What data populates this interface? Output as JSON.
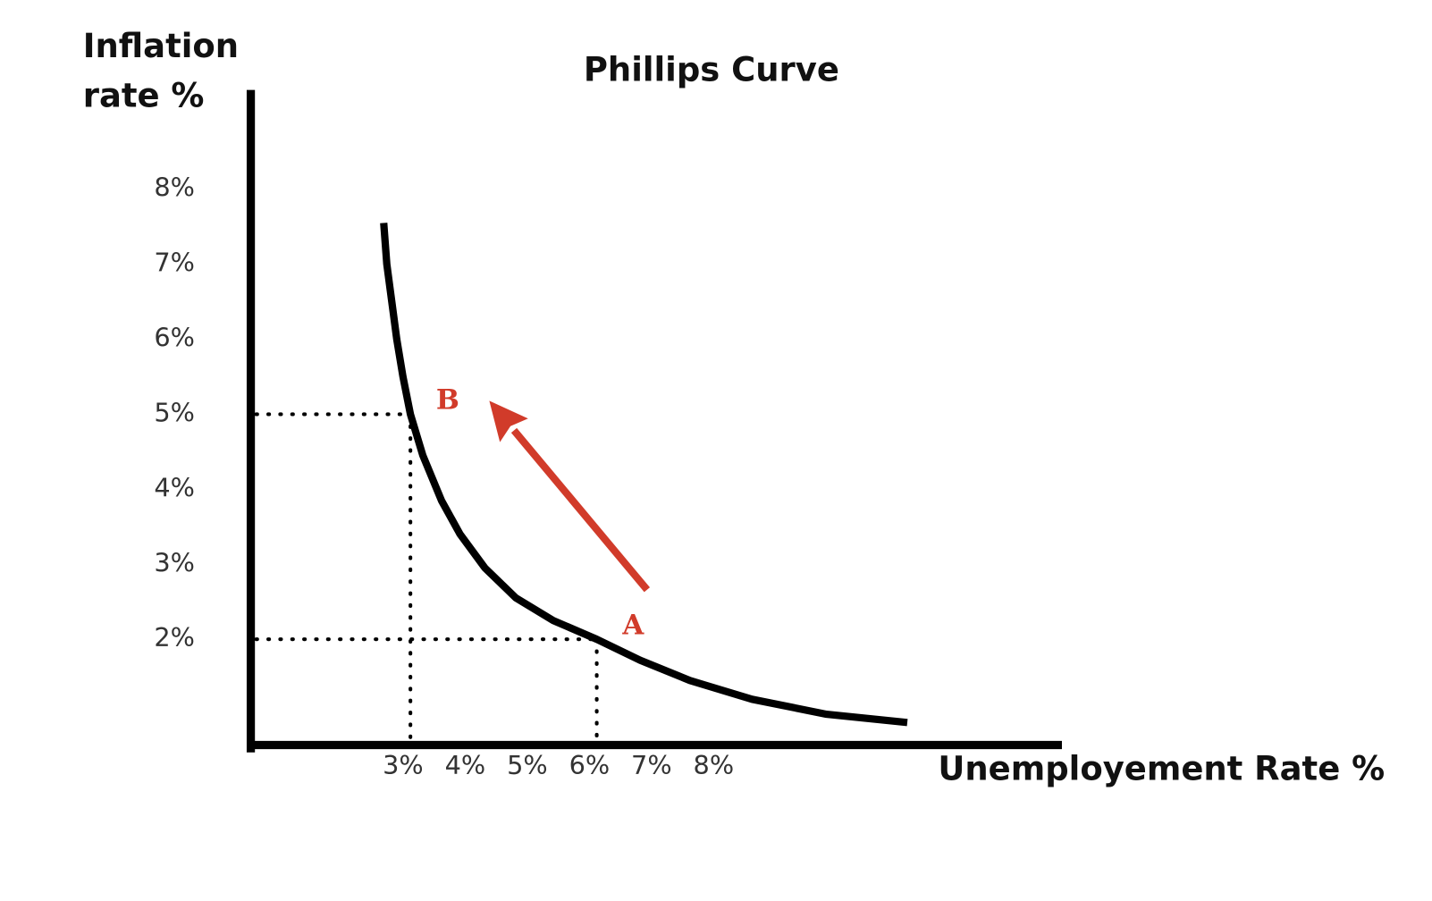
{
  "chart_data": {
    "type": "line",
    "title": "Phillips Curve",
    "y_label": [
      "Inflation",
      "rate %"
    ],
    "x_label": "Unemployement Rate %",
    "xlim": [
      0.43,
      13.46
    ],
    "ylim": [
      0.59,
      9.3
    ],
    "xticks": [
      {
        "value": 3,
        "label": "3%"
      },
      {
        "value": 4,
        "label": "4%"
      },
      {
        "value": 5,
        "label": "5%"
      },
      {
        "value": 6,
        "label": "6%"
      },
      {
        "value": 7,
        "label": "7%"
      },
      {
        "value": 8,
        "label": "8%"
      }
    ],
    "yticks": [
      {
        "value": 2,
        "label": "2%"
      },
      {
        "value": 3,
        "label": "3%"
      },
      {
        "value": 4,
        "label": "4%"
      },
      {
        "value": 5,
        "label": "5%"
      },
      {
        "value": 6,
        "label": "6%"
      },
      {
        "value": 7,
        "label": "7%"
      },
      {
        "value": 8,
        "label": "8%"
      }
    ],
    "series": [
      {
        "color": "#000000",
        "x": [
          2.57,
          2.62,
          2.7,
          2.78,
          2.88,
          3,
          3.2,
          3.5,
          3.8,
          4.2,
          4.7,
          5.3,
          6,
          6.7,
          7.5,
          8.5,
          9.7,
          11
        ],
        "values": [
          7.55,
          7.0,
          6.5,
          6.0,
          5.5,
          5.0,
          4.45,
          3.85,
          3.4,
          2.95,
          2.55,
          2.25,
          2.0,
          1.72,
          1.45,
          1.2,
          1.0,
          0.89
        ]
      }
    ],
    "points": [
      {
        "label": "B",
        "x": 3,
        "y": 5
      },
      {
        "label": "A",
        "x": 6,
        "y": 2
      }
    ],
    "points_color": "#d13b2a",
    "arrow": {
      "from": [
        6.81,
        2.66
      ],
      "to": [
        4.27,
        5.18
      ]
    }
  }
}
